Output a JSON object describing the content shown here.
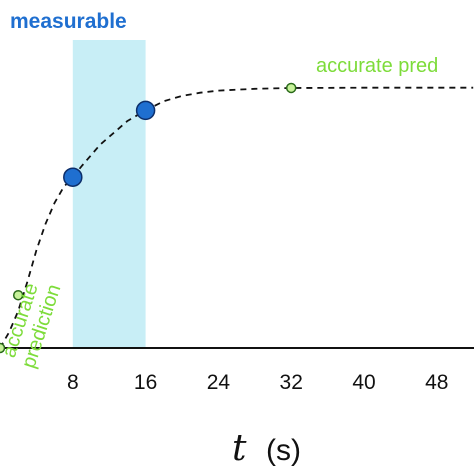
{
  "chart_data": {
    "type": "line",
    "x_axis": {
      "variable": "t",
      "unit": "(s)",
      "ticks": [
        8,
        16,
        24,
        32,
        40,
        48
      ],
      "range": [
        0,
        52
      ]
    },
    "y_axis": {
      "range": [
        0,
        1.0
      ],
      "visible": false
    },
    "curve": {
      "style": "dashed",
      "color": "#111111",
      "points": [
        {
          "x": 0,
          "y": 0.0
        },
        {
          "x": 1,
          "y": 0.06
        },
        {
          "x": 2,
          "y": 0.14
        },
        {
          "x": 3,
          "y": 0.25
        },
        {
          "x": 4,
          "y": 0.37
        },
        {
          "x": 5,
          "y": 0.47
        },
        {
          "x": 6,
          "y": 0.55
        },
        {
          "x": 7,
          "y": 0.61
        },
        {
          "x": 8,
          "y": 0.647
        },
        {
          "x": 9,
          "y": 0.69
        },
        {
          "x": 10,
          "y": 0.73
        },
        {
          "x": 11,
          "y": 0.77
        },
        {
          "x": 12,
          "y": 0.8
        },
        {
          "x": 13,
          "y": 0.83
        },
        {
          "x": 14,
          "y": 0.86
        },
        {
          "x": 15,
          "y": 0.88
        },
        {
          "x": 16,
          "y": 0.9
        },
        {
          "x": 18,
          "y": 0.935
        },
        {
          "x": 20,
          "y": 0.955
        },
        {
          "x": 22,
          "y": 0.967
        },
        {
          "x": 24,
          "y": 0.975
        },
        {
          "x": 28,
          "y": 0.982
        },
        {
          "x": 32,
          "y": 0.985
        },
        {
          "x": 40,
          "y": 0.986
        },
        {
          "x": 52,
          "y": 0.986
        }
      ]
    },
    "measurable_band": {
      "label": "measurable",
      "x_start": 8,
      "x_end": 16,
      "fill": "#c8eef6",
      "label_color": "#1f6fd0"
    },
    "measured_points": [
      {
        "x": 8,
        "y": 0.647
      },
      {
        "x": 16,
        "y": 0.9
      }
    ],
    "predicted_points": [
      {
        "x": 0,
        "y": 0.0
      },
      {
        "x": 2,
        "y": 0.2
      },
      {
        "x": 32,
        "y": 0.985
      }
    ],
    "annotations": [
      {
        "text": "accurate pred",
        "color": "#7ddc3a"
      },
      {
        "lines": [
          "accurate",
          "prediction"
        ],
        "color": "#7ddc3a",
        "rotation": -72
      }
    ],
    "colors": {
      "measured_fill": "#1f6fd0",
      "measured_stroke": "#0d2f6b",
      "predicted_fill": "#c7f29a",
      "predicted_stroke": "#2a6a1a",
      "axis": "#111111"
    },
    "grid": false,
    "legend": "none"
  }
}
